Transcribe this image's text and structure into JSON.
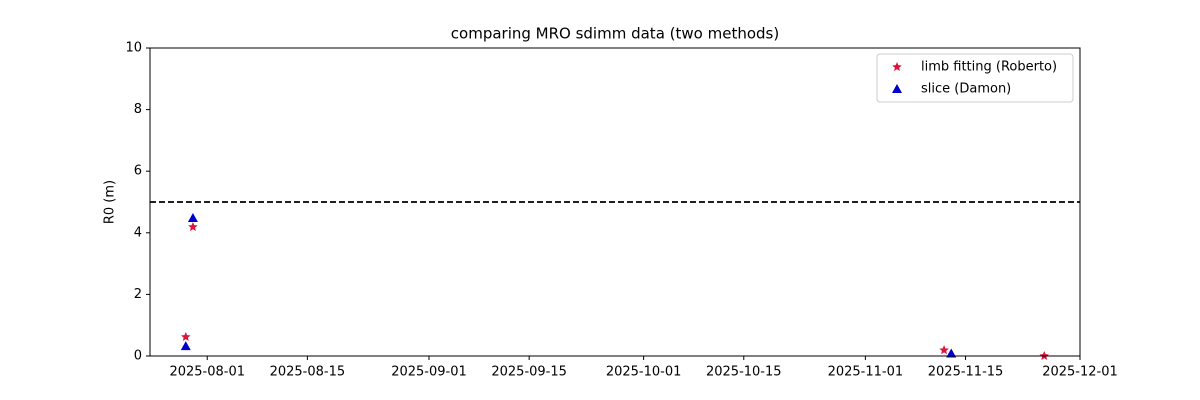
{
  "chart_data": {
    "type": "scatter",
    "title": "comparing MRO sdimm data (two methods)",
    "y_label": "R0 (m)",
    "xlim": [
      "2025-07-24",
      "2025-12-01"
    ],
    "xticks": [
      "2025-08-01",
      "2025-08-15",
      "2025-09-01",
      "2025-09-15",
      "2025-10-01",
      "2025-10-15",
      "2025-11-01",
      "2025-11-15",
      "2025-12-01"
    ],
    "ylim": [
      0,
      10
    ],
    "yticks": [
      0,
      2,
      4,
      6,
      8,
      10
    ],
    "hline": 5,
    "legend": "upper right",
    "series": [
      {
        "name": "limb fitting (Roberto)",
        "color": "#dc143c",
        "marker": "star",
        "x": [
          "2025-07-29",
          "2025-07-30",
          "2025-11-12",
          "2025-11-26"
        ],
        "values": [
          0.62,
          4.19,
          0.19,
          0.0
        ]
      },
      {
        "name": "slice (Damon)",
        "color": "#0000cd",
        "marker": "triangle",
        "x": [
          "2025-07-29",
          "2025-07-30",
          "2025-11-13"
        ],
        "values": [
          0.32,
          4.48,
          0.08
        ]
      }
    ]
  }
}
